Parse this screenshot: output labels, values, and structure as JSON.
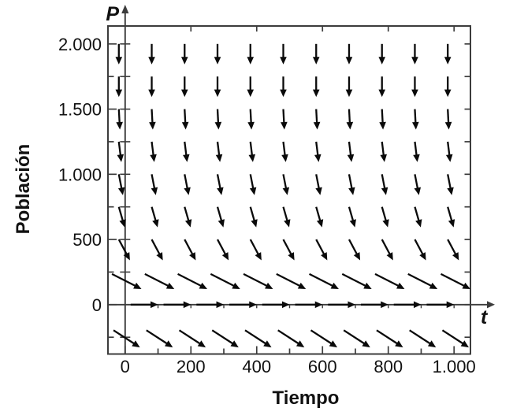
{
  "chart_data": {
    "type": "vector_field",
    "title": "",
    "xlabel": "Tiempo",
    "ylabel": "Población",
    "x_axis_symbol": "t",
    "y_axis_symbol": "P",
    "x_ticks": {
      "labels": [
        "0",
        "200",
        "400",
        "600",
        "800",
        "1.000"
      ],
      "values": [
        0,
        200,
        400,
        600,
        800,
        1000
      ]
    },
    "y_ticks": {
      "labels": [
        "2.000",
        "1.500",
        "1.000",
        "500",
        "0"
      ],
      "values": [
        2000,
        1500,
        1000,
        500,
        0
      ]
    },
    "x_minor_tick_step": 100,
    "y_minor_tick_step": 250,
    "xlim": [
      -55,
      1050
    ],
    "ylim": [
      -400,
      2150
    ],
    "grid": false,
    "field": {
      "t_points": [
        0,
        100,
        200,
        300,
        400,
        500,
        600,
        700,
        800,
        900,
        1000
      ],
      "rows": [
        {
          "p": 2000,
          "angle_deg": 90,
          "length": 26
        },
        {
          "p": 1750,
          "angle_deg": 90,
          "length": 26
        },
        {
          "p": 1500,
          "angle_deg": 87,
          "length": 26
        },
        {
          "p": 1250,
          "angle_deg": 83,
          "length": 26
        },
        {
          "p": 1000,
          "angle_deg": 79,
          "length": 27
        },
        {
          "p": 750,
          "angle_deg": 74,
          "length": 27
        },
        {
          "p": 500,
          "angle_deg": 62,
          "length": 30
        },
        {
          "p": 250,
          "angle_deg": 27,
          "length": 42
        },
        {
          "p": -250,
          "angle_deg": 33,
          "length": 40
        }
      ],
      "equilibrium_row": {
        "p": 0,
        "direction": "right",
        "arrow_count": 10
      },
      "angle_convention": "degrees below horizontal, pointing right-down"
    }
  },
  "colors": {
    "background": "#ffffff",
    "frame": "#3c3c3c",
    "axis": "#3c3c3c",
    "arrow": "#0a0a0a",
    "text": "#111111"
  }
}
